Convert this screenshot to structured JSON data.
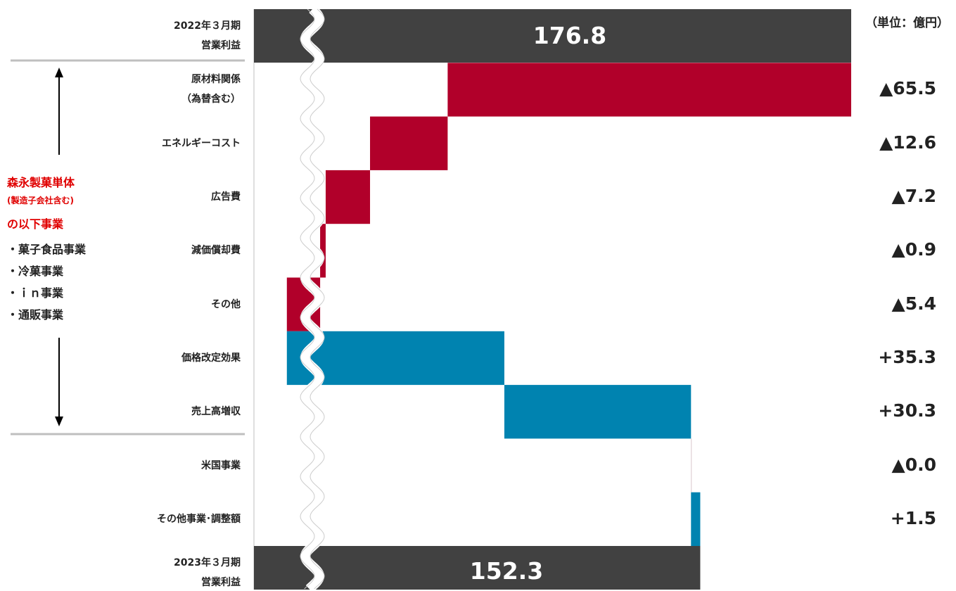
{
  "unit_label": "（単位：億円）",
  "side_panel": {
    "title_line1": "森永製菓単体",
    "title_line2": "(製造子会社含む)",
    "title_line3": "の以下事業",
    "items": [
      "・菓子食品事業",
      "・冷菓事業",
      "・ｉｎ事業",
      "・通販事業"
    ]
  },
  "colors": {
    "total": "#414141",
    "decrease": "#b1002a",
    "increase": "#0083b0",
    "divider": "#bfbfbf"
  },
  "chart_data": {
    "type": "bar",
    "subtype": "waterfall",
    "orientation": "horizontal",
    "axis_break": true,
    "start": {
      "label_line1": "2022年３月期",
      "label_line2": "営業利益",
      "value": 176.8,
      "value_label": "176.8"
    },
    "steps": [
      {
        "label_line1": "原材料関係",
        "label_line2": "（為替含む）",
        "value": -65.5,
        "value_label": "▲65.5"
      },
      {
        "label_line1": "エネルギーコスト",
        "label_line2": "",
        "value": -12.6,
        "value_label": "▲12.6"
      },
      {
        "label_line1": "広告費",
        "label_line2": "",
        "value": -7.2,
        "value_label": "▲7.2"
      },
      {
        "label_line1": "減価償却費",
        "label_line2": "",
        "value": -0.9,
        "value_label": "▲0.9"
      },
      {
        "label_line1": "その他",
        "label_line2": "",
        "value": -5.4,
        "value_label": "▲5.4"
      },
      {
        "label_line1": "価格改定効果",
        "label_line2": "",
        "value": 35.3,
        "value_label": "+35.3"
      },
      {
        "label_line1": "売上高増収",
        "label_line2": "",
        "value": 30.3,
        "value_label": "+30.3"
      },
      {
        "label_line1": "米国事業",
        "label_line2": "",
        "value": 0.0,
        "value_label": "▲0.0"
      },
      {
        "label_line1": "その他事業･調整額",
        "label_line2": "",
        "value": 1.5,
        "value_label": "+1.5"
      }
    ],
    "end": {
      "label_line1": "2023年３月期",
      "label_line2": "営業利益",
      "value": 152.3,
      "value_label": "152.3"
    }
  }
}
